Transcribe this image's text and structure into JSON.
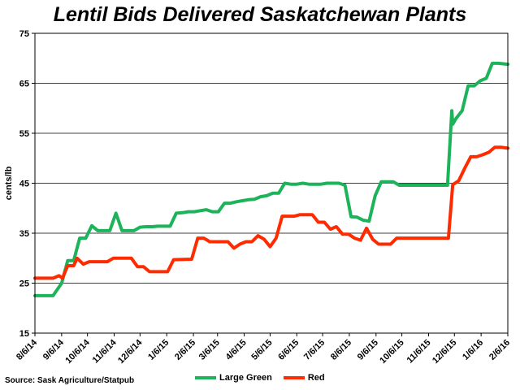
{
  "source": "Source: Sask Agriculture/Statpub",
  "colors": {
    "large_green": "#1db35a",
    "red": "#ff2b00"
  },
  "chart_data": {
    "type": "line",
    "title": "Lentil Bids Delivered Saskatchewan Plants",
    "ylabel": "cents/lb",
    "xlabel": "",
    "ylim": [
      15,
      75
    ],
    "yticks": [
      15,
      25,
      35,
      45,
      55,
      65,
      75
    ],
    "xlim": [
      "2014-08-06",
      "2016-02-06"
    ],
    "xticks": [
      "8/6/14",
      "9/6/14",
      "10/6/14",
      "11/6/14",
      "12/6/14",
      "1/6/15",
      "2/6/15",
      "3/6/15",
      "4/6/15",
      "5/6/15",
      "6/6/15",
      "7/6/15",
      "8/6/15",
      "9/6/15",
      "10/6/15",
      "11/6/15",
      "12/6/15",
      "1/6/16",
      "2/6/16"
    ],
    "grid": "horizontal",
    "legend_position": "bottom",
    "series": [
      {
        "name": "Large Green",
        "color": "#1db35a",
        "points": [
          [
            "2014-08-06",
            22.5
          ],
          [
            "2014-08-27",
            22.5
          ],
          [
            "2014-09-06",
            25
          ],
          [
            "2014-09-13",
            29.5
          ],
          [
            "2014-09-20",
            29.5
          ],
          [
            "2014-09-27",
            34
          ],
          [
            "2014-10-04",
            34
          ],
          [
            "2014-10-11",
            36.5
          ],
          [
            "2014-10-18",
            35.5
          ],
          [
            "2014-10-25",
            35.5
          ],
          [
            "2014-11-01",
            35.5
          ],
          [
            "2014-11-08",
            39
          ],
          [
            "2014-11-15",
            35.5
          ],
          [
            "2014-11-22",
            35.5
          ],
          [
            "2014-11-29",
            35.5
          ],
          [
            "2014-12-06",
            36.2
          ],
          [
            "2014-12-13",
            36.3
          ],
          [
            "2014-12-20",
            36.3
          ],
          [
            "2014-12-27",
            36.4
          ],
          [
            "2015-01-03",
            36.4
          ],
          [
            "2015-01-10",
            36.4
          ],
          [
            "2015-01-17",
            39
          ],
          [
            "2015-01-24",
            39.1
          ],
          [
            "2015-01-31",
            39.3
          ],
          [
            "2015-02-07",
            39.3
          ],
          [
            "2015-02-14",
            39.5
          ],
          [
            "2015-02-21",
            39.7
          ],
          [
            "2015-02-28",
            39.3
          ],
          [
            "2015-03-07",
            39.3
          ],
          [
            "2015-03-14",
            41
          ],
          [
            "2015-03-21",
            41
          ],
          [
            "2015-03-28",
            41.3
          ],
          [
            "2015-04-04",
            41.5
          ],
          [
            "2015-04-11",
            41.7
          ],
          [
            "2015-04-18",
            41.8
          ],
          [
            "2015-04-25",
            42.3
          ],
          [
            "2015-05-02",
            42.5
          ],
          [
            "2015-05-09",
            43
          ],
          [
            "2015-05-16",
            43
          ],
          [
            "2015-05-23",
            45
          ],
          [
            "2015-05-30",
            44.8
          ],
          [
            "2015-06-06",
            44.8
          ],
          [
            "2015-06-13",
            45
          ],
          [
            "2015-06-20",
            44.8
          ],
          [
            "2015-06-27",
            44.8
          ],
          [
            "2015-07-04",
            44.8
          ],
          [
            "2015-07-11",
            45
          ],
          [
            "2015-07-18",
            45
          ],
          [
            "2015-07-25",
            45
          ],
          [
            "2015-08-01",
            44.6
          ],
          [
            "2015-08-08",
            38.3
          ],
          [
            "2015-08-15",
            38.2
          ],
          [
            "2015-08-22",
            37.6
          ],
          [
            "2015-08-29",
            37.4
          ],
          [
            "2015-09-05",
            42.5
          ],
          [
            "2015-09-12",
            45.3
          ],
          [
            "2015-09-19",
            45.3
          ],
          [
            "2015-09-26",
            45.3
          ],
          [
            "2015-10-03",
            44.6
          ],
          [
            "2015-10-31",
            44.6
          ],
          [
            "2015-11-28",
            44.6
          ],
          [
            "2015-12-03",
            59.5
          ],
          [
            "2015-12-04",
            56.8
          ],
          [
            "2015-12-08",
            58
          ],
          [
            "2015-12-15",
            59.5
          ],
          [
            "2015-12-22",
            64.5
          ],
          [
            "2015-12-29",
            64.5
          ],
          [
            "2016-01-05",
            65.5
          ],
          [
            "2016-01-12",
            66
          ],
          [
            "2016-01-19",
            69
          ],
          [
            "2016-01-26",
            69
          ],
          [
            "2016-02-06",
            68.8
          ]
        ]
      },
      {
        "name": "Red",
        "color": "#ff2b00",
        "points": [
          [
            "2014-08-06",
            26
          ],
          [
            "2014-08-27",
            26
          ],
          [
            "2014-09-03",
            26.5
          ],
          [
            "2014-09-07",
            26
          ],
          [
            "2014-09-13",
            28.5
          ],
          [
            "2014-09-20",
            28.5
          ],
          [
            "2014-09-24",
            30
          ],
          [
            "2014-10-01",
            28.8
          ],
          [
            "2014-10-08",
            29.3
          ],
          [
            "2014-10-29",
            29.3
          ],
          [
            "2014-11-05",
            30
          ],
          [
            "2014-11-26",
            30
          ],
          [
            "2014-12-03",
            28.3
          ],
          [
            "2014-12-10",
            28.3
          ],
          [
            "2014-12-17",
            27.3
          ],
          [
            "2015-01-07",
            27.3
          ],
          [
            "2015-01-14",
            29.7
          ],
          [
            "2015-02-04",
            29.8
          ],
          [
            "2015-02-11",
            34
          ],
          [
            "2015-02-18",
            34
          ],
          [
            "2015-02-25",
            33.3
          ],
          [
            "2015-03-18",
            33.3
          ],
          [
            "2015-03-25",
            32
          ],
          [
            "2015-04-01",
            32.8
          ],
          [
            "2015-04-08",
            33.3
          ],
          [
            "2015-04-15",
            33.3
          ],
          [
            "2015-04-22",
            34.5
          ],
          [
            "2015-04-29",
            33.8
          ],
          [
            "2015-05-06",
            32.3
          ],
          [
            "2015-05-13",
            34
          ],
          [
            "2015-05-20",
            38.4
          ],
          [
            "2015-06-03",
            38.4
          ],
          [
            "2015-06-10",
            38.7
          ],
          [
            "2015-06-24",
            38.7
          ],
          [
            "2015-07-01",
            37.2
          ],
          [
            "2015-07-08",
            37.2
          ],
          [
            "2015-07-15",
            35.8
          ],
          [
            "2015-07-22",
            36.3
          ],
          [
            "2015-07-29",
            34.8
          ],
          [
            "2015-08-05",
            34.8
          ],
          [
            "2015-08-12",
            34
          ],
          [
            "2015-08-19",
            33.6
          ],
          [
            "2015-08-26",
            36
          ],
          [
            "2015-09-02",
            33.8
          ],
          [
            "2015-09-09",
            32.8
          ],
          [
            "2015-09-23",
            32.8
          ],
          [
            "2015-09-30",
            34
          ],
          [
            "2015-10-28",
            34
          ],
          [
            "2015-11-25",
            34
          ],
          [
            "2015-11-29",
            34
          ],
          [
            "2015-12-04",
            44.7
          ],
          [
            "2015-12-11",
            45.5
          ],
          [
            "2015-12-18",
            48
          ],
          [
            "2015-12-25",
            50.3
          ],
          [
            "2016-01-01",
            50.3
          ],
          [
            "2016-01-08",
            50.7
          ],
          [
            "2016-01-15",
            51.2
          ],
          [
            "2016-01-22",
            52.2
          ],
          [
            "2016-01-29",
            52.2
          ],
          [
            "2016-02-06",
            52
          ]
        ]
      }
    ]
  }
}
